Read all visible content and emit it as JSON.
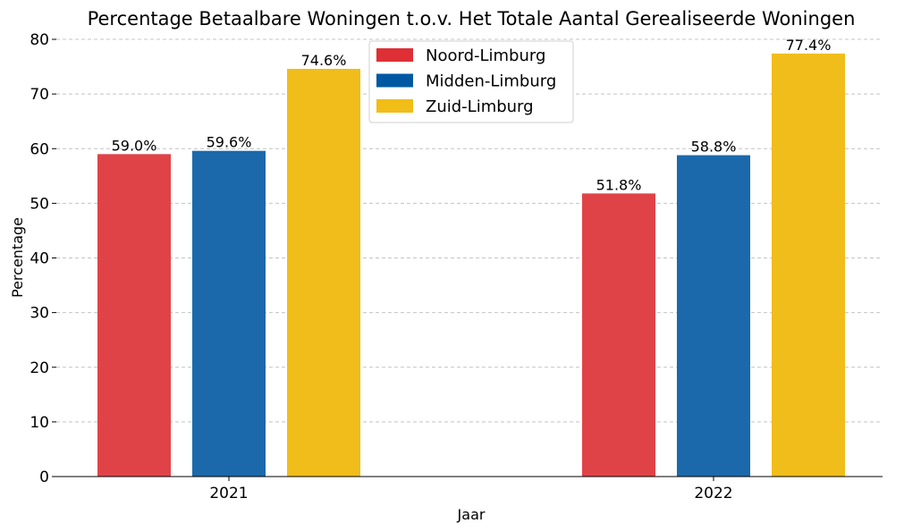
{
  "chart_data": {
    "type": "bar",
    "title": "Percentage Betaalbare Woningen t.o.v. Het Totale Aantal Gerealiseerde Woningen",
    "xlabel": "Jaar",
    "ylabel": "Percentage",
    "categories": [
      "2021",
      "2022"
    ],
    "series": [
      {
        "name": "Noord-Limburg",
        "color": "#e04347",
        "values": [
          59.0,
          51.8
        ],
        "labels": [
          "59.0%",
          "51.8%"
        ]
      },
      {
        "name": "Midden-Limburg",
        "color": "#1b69ab",
        "values": [
          59.6,
          58.8
        ],
        "labels": [
          "59.6%",
          "58.8%"
        ]
      },
      {
        "name": "Zuid-Limburg",
        "color": "#f0bd1a",
        "values": [
          74.6,
          77.4
        ],
        "labels": [
          "74.6%",
          "77.4%"
        ]
      }
    ],
    "ylim": [
      0,
      80
    ],
    "yticks": [
      "0",
      "10",
      "20",
      "30",
      "40",
      "50",
      "60",
      "70",
      "80"
    ],
    "grid": true,
    "legend_position": "top-center"
  },
  "legend_swatch_colors": [
    "#de2f36",
    "#0058a3",
    "#f1bd17"
  ]
}
